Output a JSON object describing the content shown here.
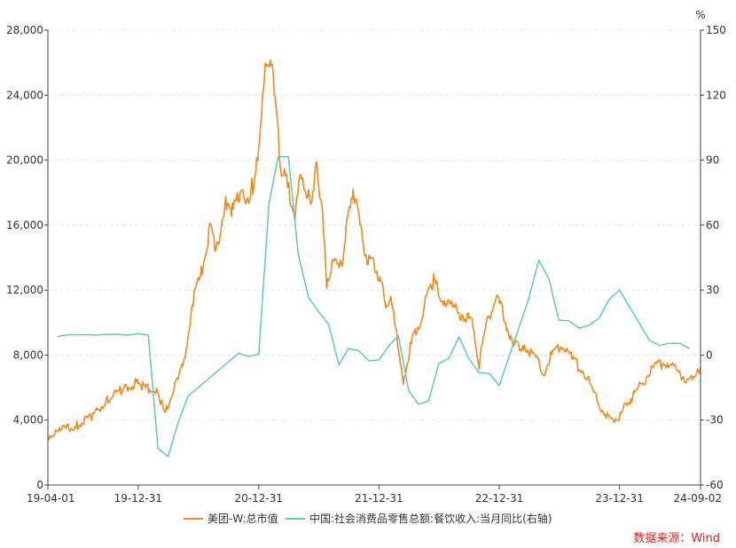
{
  "chart_data": {
    "type": "line",
    "title": "",
    "xlabel": "",
    "ylabel": "",
    "y2_unit": "%",
    "x_range": [
      "19-04-01",
      "24-09-02"
    ],
    "x_ticks": [
      "19-04-01",
      "19-12-31",
      "20-12-31",
      "21-12-31",
      "22-12-31",
      "23-12-31",
      "24-09-02"
    ],
    "ylim": [
      0,
      28000
    ],
    "y_ticks": [
      "0",
      "4,000",
      "8,000",
      "12,000",
      "16,000",
      "20,000",
      "24,000",
      "28,000"
    ],
    "y2lim": [
      -60,
      150
    ],
    "y2_ticks": [
      "-60",
      "-30",
      "0",
      "30",
      "60",
      "90",
      "120",
      "150"
    ],
    "grid": true,
    "legend_position": "bottom-center",
    "source": "数据来源：Wind",
    "series": [
      {
        "name": "美团-W:总市值",
        "axis": "left",
        "color": "#ee8a1c",
        "points": [
          [
            "2019-04-01",
            3000
          ],
          [
            "2019-05-15",
            3400
          ],
          [
            "2019-07-01",
            3700
          ],
          [
            "2019-08-15",
            4300
          ],
          [
            "2019-10-01",
            5300
          ],
          [
            "2019-11-15",
            5900
          ],
          [
            "2019-12-31",
            6400
          ],
          [
            "2020-01-20",
            6000
          ],
          [
            "2020-02-28",
            5800
          ],
          [
            "2020-03-20",
            4300
          ],
          [
            "2020-04-15",
            5800
          ],
          [
            "2020-05-15",
            7200
          ],
          [
            "2020-06-15",
            11500
          ],
          [
            "2020-07-10",
            13000
          ],
          [
            "2020-08-05",
            15800
          ],
          [
            "2020-08-20",
            14800
          ],
          [
            "2020-09-10",
            15800
          ],
          [
            "2020-09-25",
            17500
          ],
          [
            "2020-10-15",
            16800
          ],
          [
            "2020-11-10",
            18500
          ],
          [
            "2020-12-01",
            17000
          ],
          [
            "2020-12-31",
            21000
          ],
          [
            "2021-01-20",
            25500
          ],
          [
            "2021-02-10",
            26500
          ],
          [
            "2021-02-25",
            22000
          ],
          [
            "2021-03-10",
            19500
          ],
          [
            "2021-04-01",
            18000
          ],
          [
            "2021-04-20",
            16500
          ],
          [
            "2021-05-10",
            19200
          ],
          [
            "2021-06-10",
            16800
          ],
          [
            "2021-06-25",
            20000
          ],
          [
            "2021-07-10",
            17000
          ],
          [
            "2021-07-25",
            12500
          ],
          [
            "2021-08-10",
            13500
          ],
          [
            "2021-09-10",
            14000
          ],
          [
            "2021-10-05",
            17000
          ],
          [
            "2021-10-20",
            18200
          ],
          [
            "2021-11-10",
            15000
          ],
          [
            "2021-11-25",
            14000
          ],
          [
            "2021-12-15",
            13500
          ],
          [
            "2021-12-31",
            13000
          ],
          [
            "2022-01-20",
            11000
          ],
          [
            "2022-02-05",
            11500
          ],
          [
            "2022-03-15",
            6500
          ],
          [
            "2022-04-05",
            8500
          ],
          [
            "2022-05-01",
            10000
          ],
          [
            "2022-06-15",
            12500
          ],
          [
            "2022-07-15",
            11500
          ],
          [
            "2022-08-15",
            10800
          ],
          [
            "2022-09-15",
            10500
          ],
          [
            "2022-10-10",
            9800
          ],
          [
            "2022-10-31",
            7500
          ],
          [
            "2022-11-25",
            10000
          ],
          [
            "2022-12-20",
            11500
          ],
          [
            "2023-01-10",
            10800
          ],
          [
            "2023-02-10",
            8500
          ],
          [
            "2023-03-15",
            8700
          ],
          [
            "2023-04-15",
            8000
          ],
          [
            "2023-05-15",
            7000
          ],
          [
            "2023-06-15",
            8200
          ],
          [
            "2023-07-10",
            8800
          ],
          [
            "2023-08-15",
            7500
          ],
          [
            "2023-09-15",
            7000
          ],
          [
            "2023-10-15",
            5500
          ],
          [
            "2023-11-15",
            4500
          ],
          [
            "2023-12-05",
            4000
          ],
          [
            "2023-12-31",
            4200
          ],
          [
            "2024-01-20",
            5000
          ],
          [
            "2024-02-15",
            5600
          ],
          [
            "2024-03-15",
            6500
          ],
          [
            "2024-04-15",
            7300
          ],
          [
            "2024-05-15",
            7600
          ],
          [
            "2024-06-15",
            7200
          ],
          [
            "2024-07-15",
            6600
          ],
          [
            "2024-08-15",
            6400
          ],
          [
            "2024-09-02",
            7300
          ]
        ]
      },
      {
        "name": "中国:社会消费品零售总额:餐饮收入:当月同比(右轴)",
        "axis": "right",
        "color": "#5fc7c4",
        "points": [
          [
            "2019-04-30",
            8.5
          ],
          [
            "2019-05-31",
            9.4
          ],
          [
            "2019-06-30",
            9.4
          ],
          [
            "2019-07-31",
            9.4
          ],
          [
            "2019-08-31",
            9.3
          ],
          [
            "2019-09-30",
            9.6
          ],
          [
            "2019-10-31",
            9.6
          ],
          [
            "2019-11-30",
            9.2
          ],
          [
            "2019-12-31",
            9.9
          ],
          [
            "2020-01-31",
            9.2
          ],
          [
            "2020-02-29",
            -43.1
          ],
          [
            "2020-03-31",
            -46.8
          ],
          [
            "2020-04-30",
            -31.1
          ],
          [
            "2020-05-31",
            -18.9
          ],
          [
            "2020-10-31",
            0.8
          ],
          [
            "2020-11-30",
            -0.6
          ],
          [
            "2020-12-31",
            0.4
          ],
          [
            "2021-01-31",
            69.9
          ],
          [
            "2021-02-28",
            91.6
          ],
          [
            "2021-03-31",
            91.6
          ],
          [
            "2021-04-30",
            46.4
          ],
          [
            "2021-05-31",
            26.6
          ],
          [
            "2021-06-30",
            20.2
          ],
          [
            "2021-07-31",
            14.3
          ],
          [
            "2021-08-31",
            -4.5
          ],
          [
            "2021-09-30",
            3.1
          ],
          [
            "2021-10-31",
            2.0
          ],
          [
            "2021-11-30",
            -2.7
          ],
          [
            "2021-12-31",
            -2.2
          ],
          [
            "2022-01-31",
            4.5
          ],
          [
            "2022-02-28",
            8.9
          ],
          [
            "2022-03-31",
            -16.4
          ],
          [
            "2022-04-30",
            -22.7
          ],
          [
            "2022-05-31",
            -21.1
          ],
          [
            "2022-06-30",
            -4.0
          ],
          [
            "2022-07-31",
            -1.5
          ],
          [
            "2022-08-31",
            8.4
          ],
          [
            "2022-09-30",
            -1.7
          ],
          [
            "2022-10-31",
            -8.1
          ],
          [
            "2022-11-30",
            -8.4
          ],
          [
            "2022-12-31",
            -14.1
          ],
          [
            "2023-03-31",
            26.3
          ],
          [
            "2023-04-30",
            43.8
          ],
          [
            "2023-05-31",
            35.1
          ],
          [
            "2023-06-30",
            16.1
          ],
          [
            "2023-07-31",
            15.8
          ],
          [
            "2023-08-31",
            12.4
          ],
          [
            "2023-09-30",
            13.8
          ],
          [
            "2023-10-31",
            17.1
          ],
          [
            "2023-11-30",
            25.8
          ],
          [
            "2023-12-31",
            30.0
          ],
          [
            "2024-03-31",
            6.9
          ],
          [
            "2024-04-30",
            4.4
          ],
          [
            "2024-05-31",
            5.4
          ],
          [
            "2024-06-30",
            5.4
          ],
          [
            "2024-07-31",
            3.0
          ]
        ]
      }
    ]
  }
}
